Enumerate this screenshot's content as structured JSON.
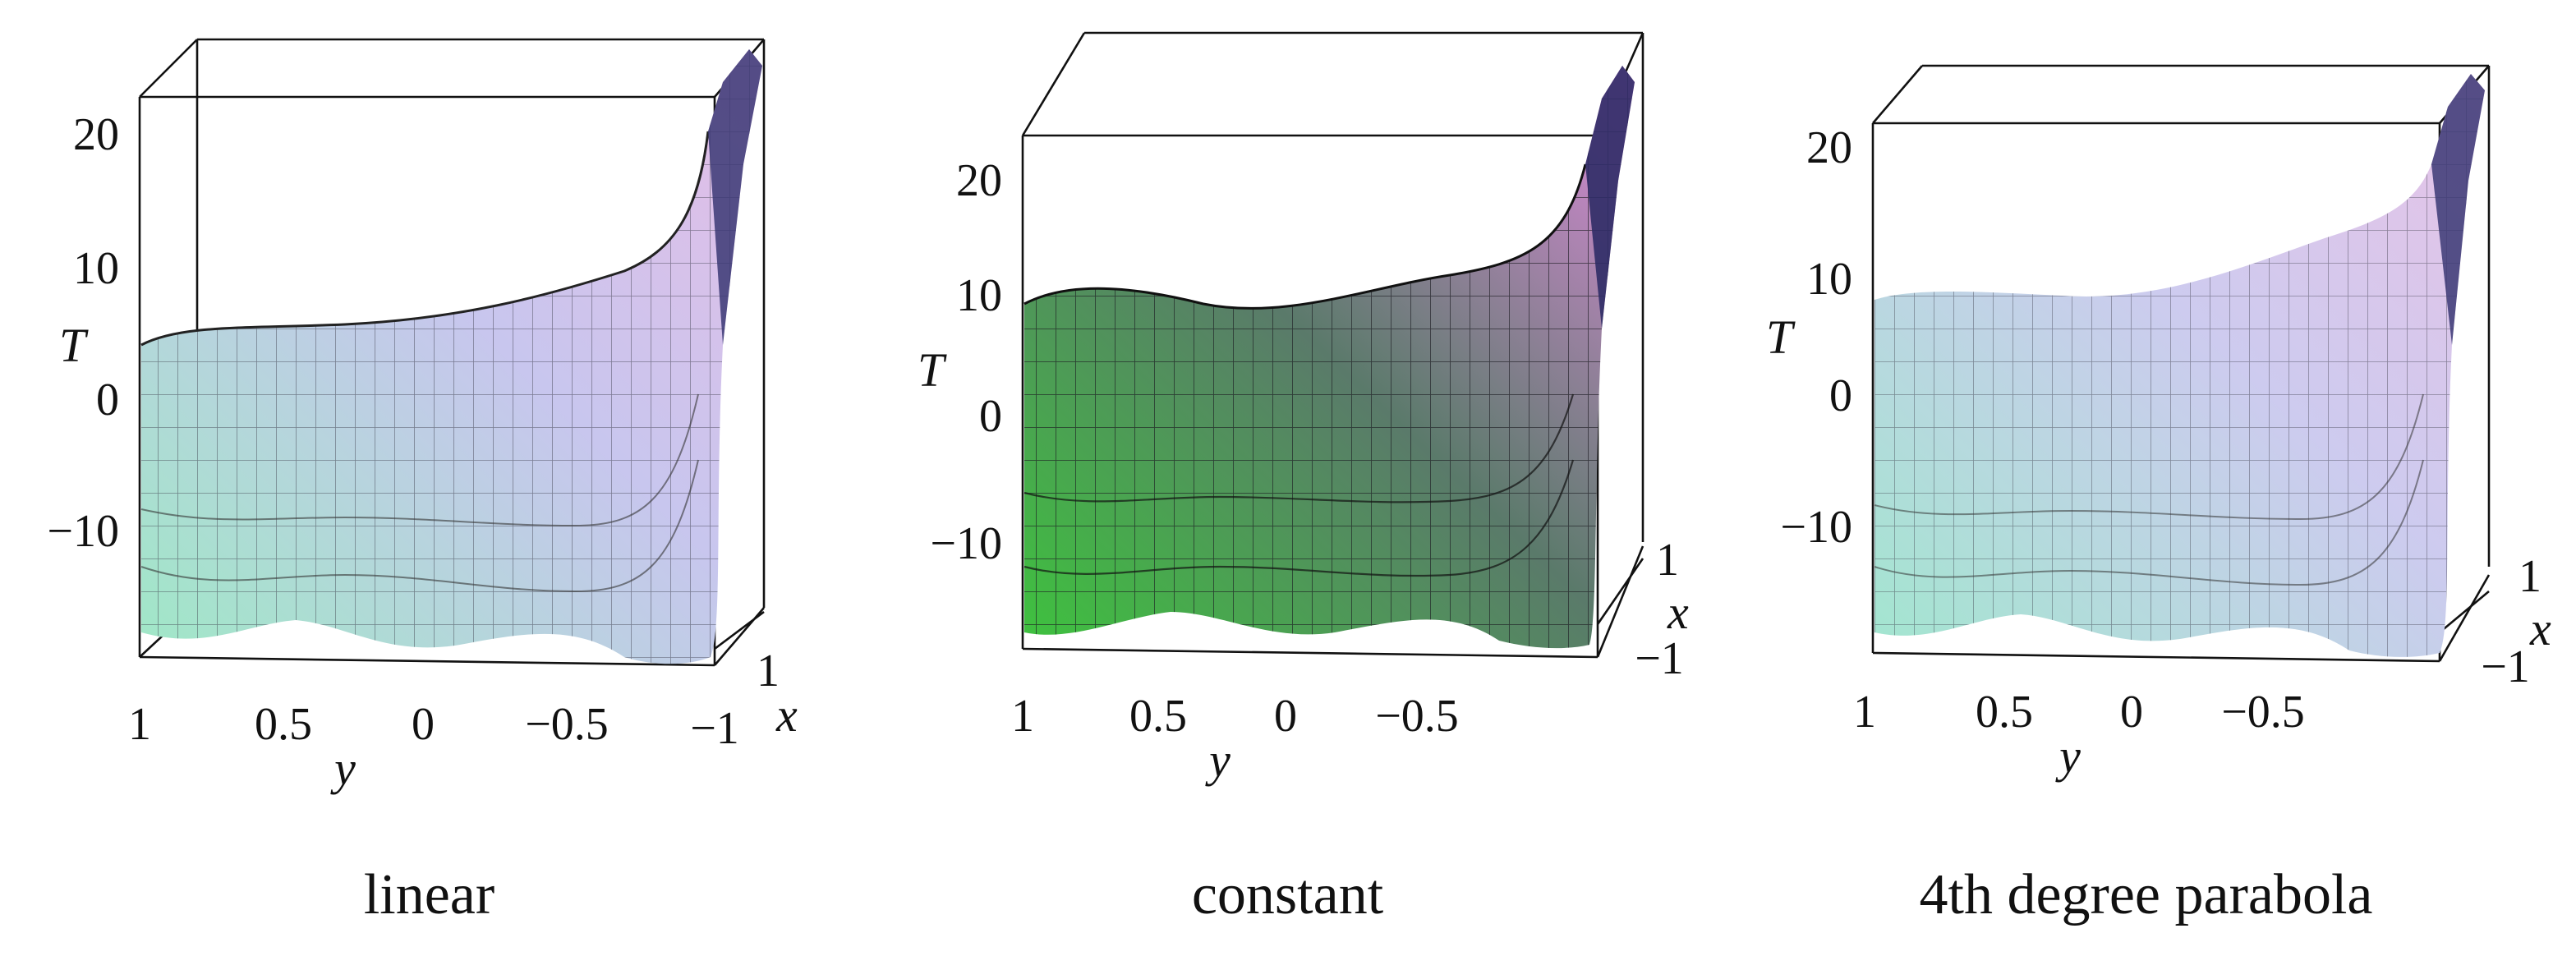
{
  "chart_data": [
    {
      "type": "surface3d",
      "caption": "linear",
      "zlabel": "T",
      "xlabel": "x",
      "ylabel": "y",
      "z_ticks": [
        "20",
        "10",
        "0",
        "−10"
      ],
      "y_ticks": [
        "1",
        "0.5",
        "0",
        "−0.5"
      ],
      "x_ticks": [
        "1",
        "−1"
      ],
      "colors": {
        "low": "#9fe8c6",
        "mid": "#c8c6ee",
        "high": "#e6bde6",
        "spike": "#2c2a62"
      }
    },
    {
      "type": "surface3d",
      "caption": "constant",
      "zlabel": "T",
      "xlabel": "x",
      "ylabel": "y",
      "z_ticks": [
        "20",
        "10",
        "0",
        "−10"
      ],
      "y_ticks": [
        "1",
        "0.5",
        "0",
        "−0.5"
      ],
      "x_ticks": [
        "1",
        "−1"
      ],
      "colors": {
        "low": "#3ec23e",
        "mid": "#5a7a6a",
        "high": "#e28adf",
        "spike": "#24204f"
      }
    },
    {
      "type": "surface3d",
      "caption": "4th degree parabola",
      "zlabel": "T",
      "xlabel": "x",
      "ylabel": "y",
      "z_ticks": [
        "20",
        "10",
        "0",
        "−10"
      ],
      "y_ticks": [
        "1",
        "0.5",
        "0",
        "−0.5"
      ],
      "x_ticks": [
        "1",
        "−1"
      ],
      "colors": {
        "low": "#a2e6cf",
        "mid": "#cdcbef",
        "high": "#e8c2e6",
        "spike": "#2a2860"
      }
    }
  ]
}
